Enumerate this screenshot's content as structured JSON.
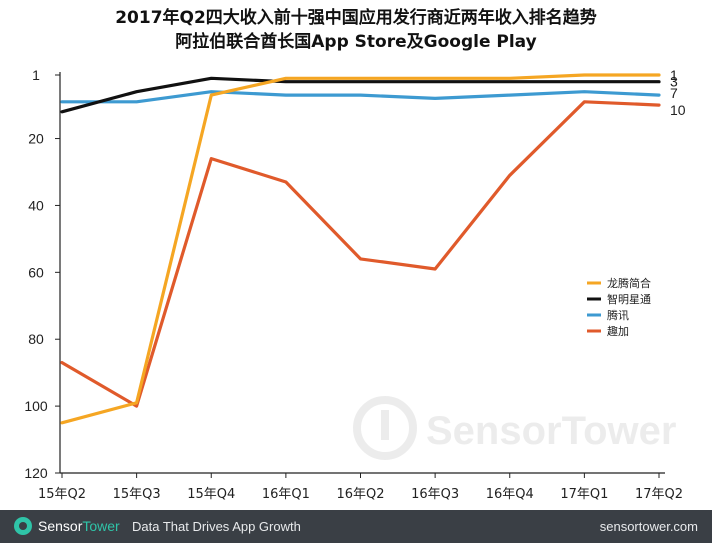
{
  "chart_data": {
    "type": "line",
    "title_line1": "2017年Q2四大收入前十强中国应用发行商近两年收入排名趋势",
    "title_line2": "阿拉伯联合酋长国App Store及Google Play",
    "xlabel": "",
    "ylabel": "",
    "categories": [
      "15年Q2",
      "15年Q3",
      "15年Q4",
      "16年Q1",
      "16年Q2",
      "16年Q3",
      "16年Q4",
      "17年Q1",
      "17年Q2"
    ],
    "yticks": [
      1,
      20,
      40,
      60,
      80,
      100,
      120
    ],
    "ylim": [
      1,
      120
    ],
    "y_inverted": true,
    "grid": false,
    "legend_position": "right",
    "series": [
      {
        "name": "龙腾简合",
        "color": "#f5a623",
        "end_label": "1",
        "values": [
          105,
          99,
          7,
          2,
          2,
          2,
          2,
          1,
          1
        ]
      },
      {
        "name": "智明星通",
        "color": "#111111",
        "end_label": "3",
        "values": [
          12,
          6,
          2,
          3,
          3,
          3,
          3,
          3,
          3
        ]
      },
      {
        "name": "腾讯",
        "color": "#3d9ad1",
        "end_label": "7",
        "values": [
          9,
          9,
          6,
          7,
          7,
          8,
          7,
          6,
          7
        ]
      },
      {
        "name": "趣加",
        "color": "#e05a2b",
        "end_label": "10",
        "values": [
          87,
          100,
          26,
          33,
          56,
          59,
          31,
          9,
          10
        ]
      }
    ]
  },
  "watermark": {
    "text": "SensorTower"
  },
  "footer": {
    "brand_prefix": "Sensor",
    "brand_suffix": "Tower",
    "tagline": "Data That Drives App Growth",
    "site": "sensortower.com",
    "accent_color": "#2fc4a8",
    "background_color": "#3a3f45"
  }
}
